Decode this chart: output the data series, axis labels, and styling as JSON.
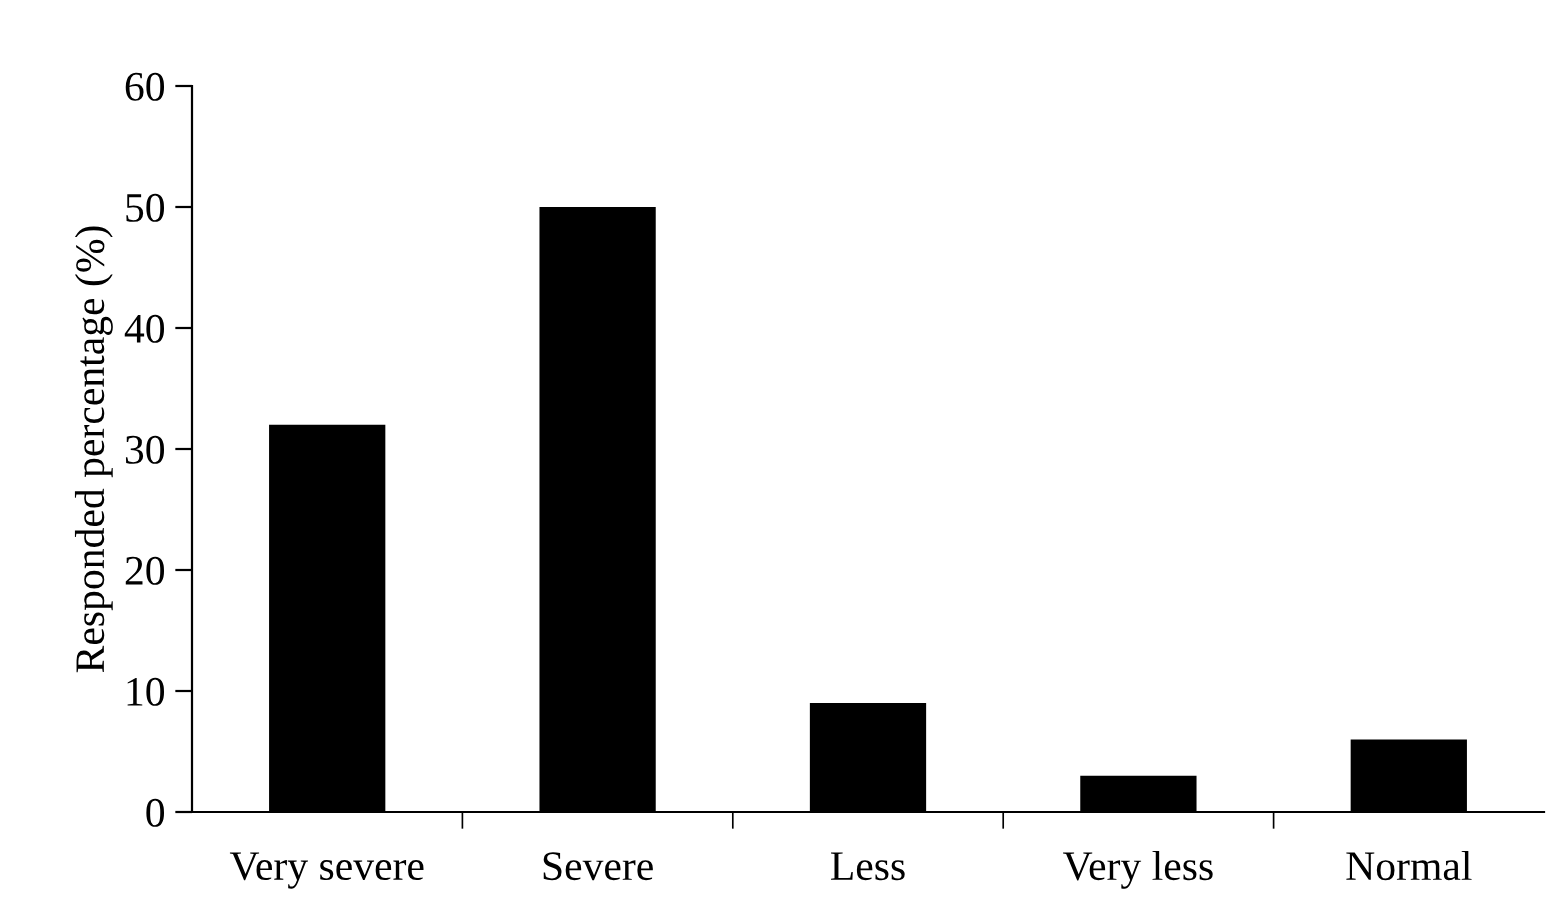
{
  "chart_data": {
    "type": "bar",
    "ylabel": "Responded percentage (%)",
    "categories": [
      "Very severe",
      "Severe",
      "Less",
      "Very less",
      "Normal"
    ],
    "values": [
      32,
      50,
      9,
      3,
      6
    ],
    "color": "#000000",
    "ylim": [
      0,
      60
    ],
    "yticks": [
      0,
      10,
      20,
      30,
      40,
      50,
      60
    ],
    "grid": false,
    "legend": false
  }
}
